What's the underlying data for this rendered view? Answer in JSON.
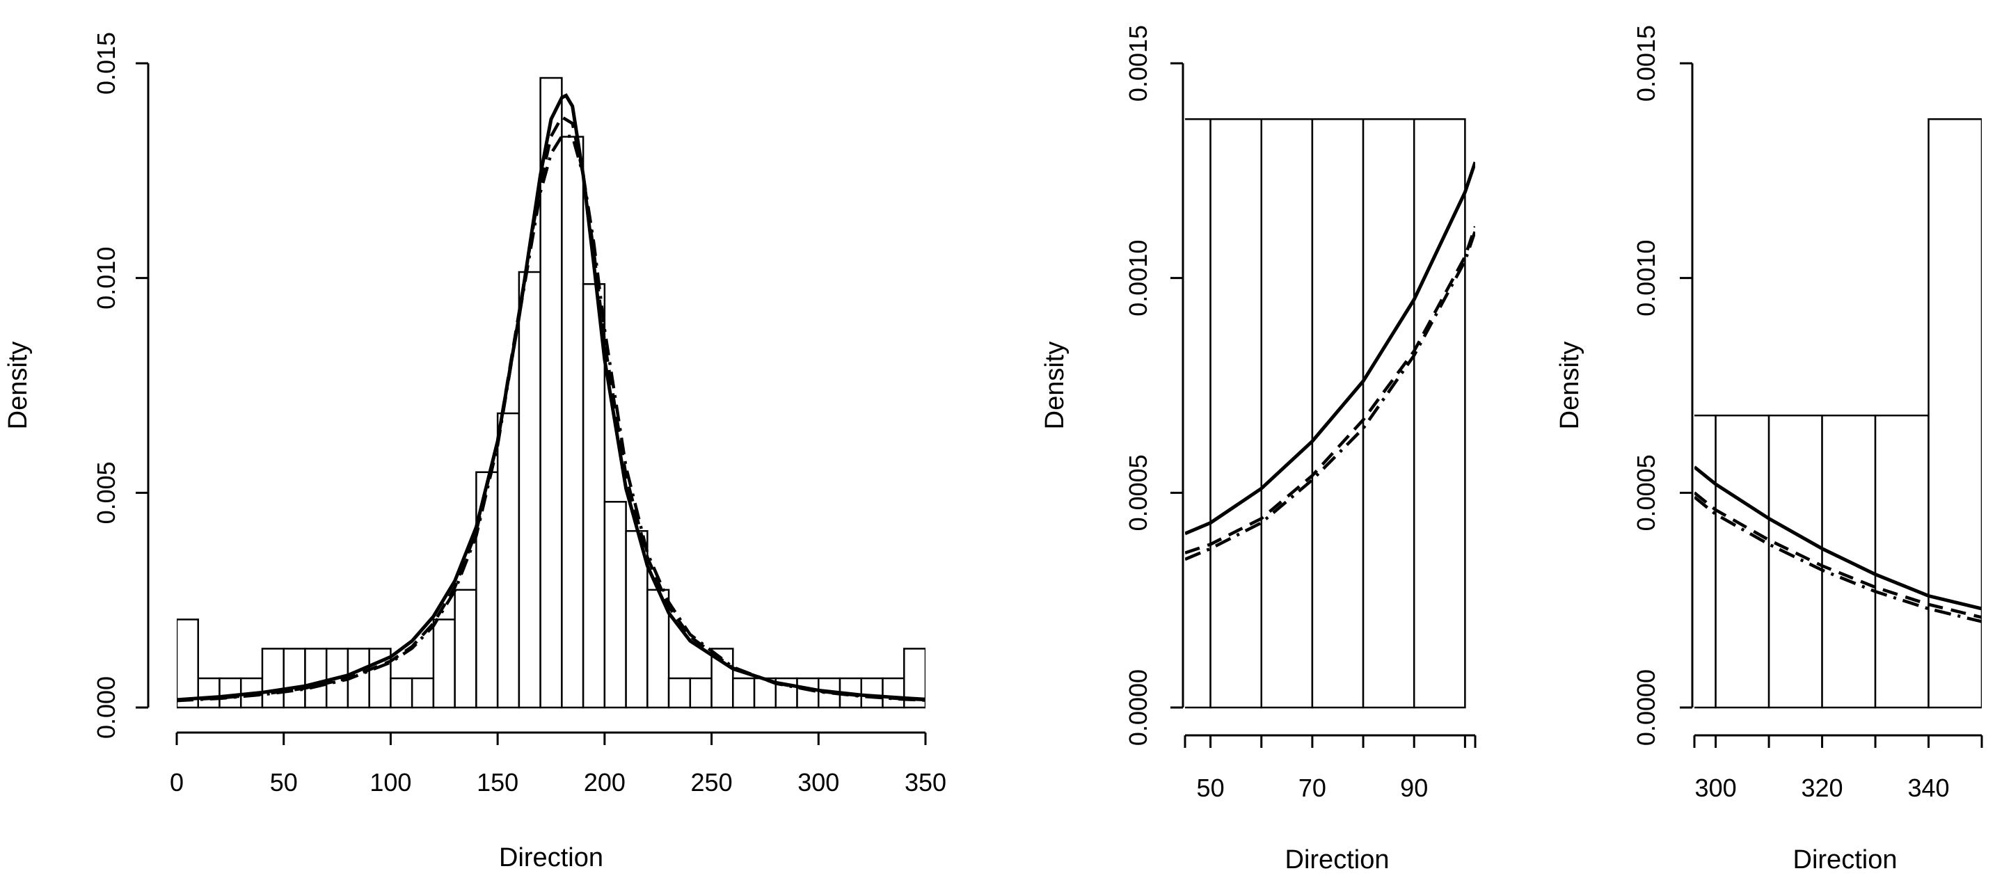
{
  "chart_data": [
    {
      "type": "histogram",
      "panel": "full",
      "xlabel": "Direction",
      "ylabel": "Density",
      "xlim": [
        0,
        350
      ],
      "ylim": [
        0,
        0.015
      ],
      "xticks": [
        "0",
        "50",
        "100",
        "150",
        "200",
        "250",
        "300",
        "350"
      ],
      "yticks": [
        "0.000",
        "0.005",
        "0.010",
        "0.015"
      ],
      "bin_width": 10,
      "bins": [
        {
          "start": 0,
          "value": 0.00205
        },
        {
          "start": 10,
          "value": 0.00068
        },
        {
          "start": 20,
          "value": 0.00068
        },
        {
          "start": 30,
          "value": 0.00068
        },
        {
          "start": 40,
          "value": 0.00137
        },
        {
          "start": 50,
          "value": 0.00137
        },
        {
          "start": 60,
          "value": 0.00137
        },
        {
          "start": 70,
          "value": 0.00137
        },
        {
          "start": 80,
          "value": 0.00137
        },
        {
          "start": 90,
          "value": 0.00137
        },
        {
          "start": 100,
          "value": 0.00068
        },
        {
          "start": 110,
          "value": 0.00068
        },
        {
          "start": 120,
          "value": 0.00205
        },
        {
          "start": 130,
          "value": 0.00274
        },
        {
          "start": 140,
          "value": 0.00548
        },
        {
          "start": 150,
          "value": 0.00685
        },
        {
          "start": 160,
          "value": 0.01014
        },
        {
          "start": 170,
          "value": 0.01466
        },
        {
          "start": 180,
          "value": 0.01329
        },
        {
          "start": 190,
          "value": 0.00986
        },
        {
          "start": 200,
          "value": 0.00479
        },
        {
          "start": 210,
          "value": 0.00411
        },
        {
          "start": 220,
          "value": 0.00274
        },
        {
          "start": 230,
          "value": 0.00068
        },
        {
          "start": 240,
          "value": 0.00068
        },
        {
          "start": 250,
          "value": 0.00137
        },
        {
          "start": 260,
          "value": 0.00068
        },
        {
          "start": 270,
          "value": 0.00068
        },
        {
          "start": 280,
          "value": 0.00068
        },
        {
          "start": 290,
          "value": 0.00068
        },
        {
          "start": 300,
          "value": 0.00068
        },
        {
          "start": 310,
          "value": 0.00068
        },
        {
          "start": 320,
          "value": 0.00068
        },
        {
          "start": 330,
          "value": 0.00068
        },
        {
          "start": 340,
          "value": 0.00137
        }
      ],
      "series": [
        {
          "name": "solid",
          "style": "solid",
          "x": [
            0,
            20,
            40,
            60,
            80,
            100,
            110,
            120,
            130,
            140,
            150,
            160,
            170,
            175,
            180,
            182,
            185,
            190,
            195,
            200,
            210,
            220,
            230,
            240,
            260,
            280,
            300,
            320,
            340,
            350
          ],
          "y": [
            0.00018,
            0.00025,
            0.00035,
            0.0005,
            0.00075,
            0.00118,
            0.00155,
            0.00212,
            0.00295,
            0.0042,
            0.0062,
            0.0091,
            0.0124,
            0.0137,
            0.0142,
            0.01425,
            0.014,
            0.0124,
            0.0103,
            0.0081,
            0.0051,
            0.0033,
            0.0022,
            0.00155,
            0.0009,
            0.00058,
            0.0004,
            0.00029,
            0.00022,
            0.00019
          ]
        },
        {
          "name": "dashed",
          "style": "dashed",
          "x": [
            0,
            20,
            40,
            60,
            80,
            100,
            110,
            120,
            130,
            140,
            150,
            160,
            170,
            175,
            180,
            185,
            190,
            195,
            200,
            210,
            220,
            230,
            240,
            260,
            280,
            300,
            320,
            340,
            350
          ],
          "y": [
            0.00017,
            0.00022,
            0.00031,
            0.00045,
            0.00068,
            0.00108,
            0.00142,
            0.00196,
            0.0028,
            0.0041,
            0.0062,
            0.0092,
            0.0122,
            0.0133,
            0.01375,
            0.0136,
            0.0124,
            0.0106,
            0.0085,
            0.0054,
            0.0035,
            0.00235,
            0.00165,
            0.00092,
            0.00057,
            0.00038,
            0.00027,
            0.0002,
            0.00018
          ]
        },
        {
          "name": "dotdash",
          "style": "dotdash",
          "x": [
            0,
            20,
            40,
            60,
            80,
            100,
            110,
            120,
            130,
            140,
            150,
            160,
            170,
            175,
            180,
            185,
            190,
            195,
            200,
            210,
            220,
            230,
            240,
            260,
            280,
            300,
            320,
            340,
            350
          ],
          "y": [
            0.00016,
            0.00021,
            0.0003,
            0.00043,
            0.00066,
            0.00105,
            0.00138,
            0.0019,
            0.00272,
            0.004,
            0.0061,
            0.0091,
            0.012,
            0.0129,
            0.0133,
            0.0133,
            0.0124,
            0.0108,
            0.0088,
            0.0056,
            0.0036,
            0.00245,
            0.0017,
            0.00094,
            0.00056,
            0.00037,
            0.00026,
            0.00019,
            0.00017
          ]
        }
      ]
    },
    {
      "type": "histogram",
      "panel": "zoom-low",
      "xlabel": "Direction",
      "ylabel": "Density",
      "xlim": [
        45,
        102
      ],
      "ylim": [
        0,
        0.0015
      ],
      "xticks": [
        "50",
        "70",
        "90"
      ],
      "yticks": [
        "0.0000",
        "0.0005",
        "0.0010",
        "0.0015"
      ],
      "bin_width": 10,
      "bins": [
        {
          "start": 40,
          "value": 0.00137
        },
        {
          "start": 50,
          "value": 0.00137
        },
        {
          "start": 60,
          "value": 0.00137
        },
        {
          "start": 70,
          "value": 0.00137
        },
        {
          "start": 80,
          "value": 0.00137
        },
        {
          "start": 90,
          "value": 0.00137
        }
      ],
      "series": [
        {
          "name": "solid",
          "style": "solid",
          "x": [
            45,
            50,
            60,
            70,
            80,
            90,
            100,
            102
          ],
          "y": [
            0.000405,
            0.00043,
            0.00051,
            0.00062,
            0.00076,
            0.00095,
            0.0012,
            0.00127
          ]
        },
        {
          "name": "dashed",
          "style": "dashed",
          "x": [
            45,
            50,
            60,
            70,
            80,
            90,
            100,
            102
          ],
          "y": [
            0.00036,
            0.00038,
            0.00044,
            0.00054,
            0.00067,
            0.00083,
            0.00105,
            0.00112
          ]
        },
        {
          "name": "dotdash",
          "style": "dotdash",
          "x": [
            45,
            50,
            60,
            70,
            80,
            90,
            100,
            102
          ],
          "y": [
            0.000345,
            0.00037,
            0.00043,
            0.00053,
            0.00065,
            0.00082,
            0.00104,
            0.00111
          ]
        }
      ]
    },
    {
      "type": "histogram",
      "panel": "zoom-high",
      "xlabel": "Direction",
      "ylabel": "Density",
      "xlim": [
        296,
        350
      ],
      "ylim": [
        0,
        0.0015
      ],
      "xticks": [
        "300",
        "320",
        "340"
      ],
      "yticks": [
        "0.0000",
        "0.0005",
        "0.0010",
        "0.0015"
      ],
      "bin_width": 10,
      "bins": [
        {
          "start": 290,
          "value": 0.00068
        },
        {
          "start": 300,
          "value": 0.00068
        },
        {
          "start": 310,
          "value": 0.00068
        },
        {
          "start": 320,
          "value": 0.00068
        },
        {
          "start": 330,
          "value": 0.00068
        },
        {
          "start": 340,
          "value": 0.00137
        }
      ],
      "series": [
        {
          "name": "solid",
          "style": "solid",
          "x": [
            296,
            300,
            310,
            320,
            330,
            340,
            350
          ],
          "y": [
            0.00056,
            0.00052,
            0.00044,
            0.00037,
            0.00031,
            0.00026,
            0.00023
          ]
        },
        {
          "name": "dashed",
          "style": "dashed",
          "x": [
            296,
            300,
            310,
            320,
            330,
            340,
            350
          ],
          "y": [
            0.0005,
            0.00046,
            0.00039,
            0.00033,
            0.00028,
            0.00024,
            0.00021
          ]
        },
        {
          "name": "dotdash",
          "style": "dotdash",
          "x": [
            296,
            300,
            310,
            320,
            330,
            340,
            350
          ],
          "y": [
            0.00049,
            0.00045,
            0.00038,
            0.00032,
            0.00027,
            0.00023,
            0.0002
          ]
        }
      ]
    }
  ]
}
